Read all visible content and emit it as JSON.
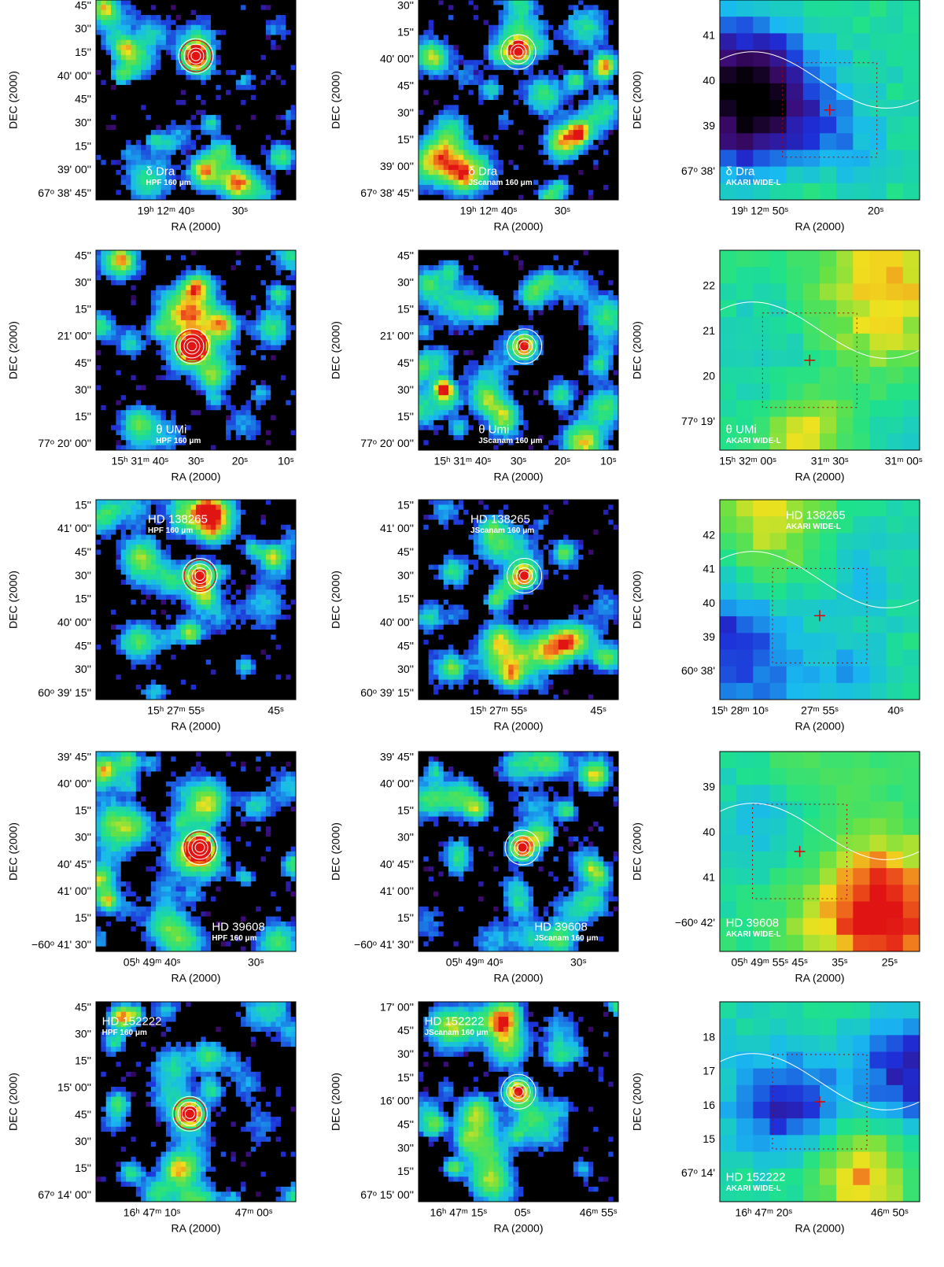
{
  "panels": [
    {
      "name": "δ Dra",
      "instrument": "HPF 160 μm",
      "y_label": "DEC (2000)",
      "x_label": "RA (2000)",
      "yticks": [
        "45''",
        "30''",
        "15''",
        "40' 00''",
        "45''",
        "30''",
        "15''",
        "39' 00''",
        "67ᵒ 38' 45''"
      ],
      "xticks": [
        "19ʰ 12ᵐ 40ˢ",
        "30ˢ"
      ]
    },
    {
      "name": "δ Dra",
      "instrument": "JScanam 160 μm",
      "y_label": "DEC (2000)",
      "x_label": "RA (2000)",
      "yticks": [
        "30''",
        "15''",
        "40' 00''",
        "45''",
        "30''",
        "15''",
        "39' 00''",
        "67ᵒ 38' 45''"
      ],
      "xticks": [
        "19ʰ 12ᵐ 40ˢ",
        "30ˢ"
      ]
    },
    {
      "name": "δ Dra",
      "instrument": "AKARI WIDE-L",
      "y_label": "DEC (2000)",
      "x_label": "RA (2000)",
      "yticks": [
        "41",
        "40",
        "39",
        "67ᵒ 38'"
      ],
      "xticks": [
        "19ʰ 12ᵐ 50ˢ",
        "20ˢ"
      ]
    },
    {
      "name": "θ UMi",
      "instrument": "HPF 160 μm",
      "y_label": "DEC (2000)",
      "x_label": "RA (2000)",
      "yticks": [
        "45''",
        "30''",
        "15''",
        "21' 00''",
        "45''",
        "30''",
        "15''",
        "77ᵒ 20' 00''"
      ],
      "xticks": [
        "15ʰ 31ᵐ 40ˢ",
        "30ˢ",
        "20ˢ",
        "10ˢ"
      ]
    },
    {
      "name": "θ Umi",
      "instrument": "JScanam 160 μm",
      "y_label": "DEC (2000)",
      "x_label": "RA (2000)",
      "yticks": [
        "45''",
        "30''",
        "15''",
        "21' 00''",
        "45''",
        "30''",
        "15''",
        "77ᵒ 20' 00''"
      ],
      "xticks": [
        "15ʰ 31ᵐ 40ˢ",
        "30ˢ",
        "20ˢ",
        "10ˢ"
      ]
    },
    {
      "name": "θ UMi",
      "instrument": "AKARI WIDE-L",
      "y_label": "DEC (2000)",
      "x_label": "RA (2000)",
      "yticks": [
        "22",
        "21",
        "20",
        "77ᵒ 19'"
      ],
      "xticks": [
        "15ʰ 32ᵐ 00ˢ",
        "31ᵐ 30ˢ",
        "31ᵐ 00ˢ"
      ]
    },
    {
      "name": "HD 138265",
      "instrument": "HPF 160 μm",
      "y_label": "DEC (2000)",
      "x_label": "RA (2000)",
      "yticks": [
        "15''",
        "41' 00''",
        "45''",
        "30''",
        "15''",
        "40' 00''",
        "45''",
        "30''",
        "60ᵒ 39' 15''"
      ],
      "xticks": [
        "15ʰ 27ᵐ 55ˢ",
        "45ˢ"
      ]
    },
    {
      "name": "HD 138265",
      "instrument": "JScanam 160 μm",
      "y_label": "DEC (2000)",
      "x_label": "RA (2000)",
      "yticks": [
        "15''",
        "41' 00''",
        "45''",
        "30''",
        "15''",
        "40' 00''",
        "45''",
        "30''",
        "60ᵒ 39' 15''"
      ],
      "xticks": [
        "15ʰ 27ᵐ 55ˢ",
        "45ˢ"
      ]
    },
    {
      "name": "HD 138265",
      "instrument": "AKARI WIDE-L",
      "y_label": "DEC (2000)",
      "x_label": "RA (2000)",
      "yticks": [
        "42",
        "41",
        "40",
        "39",
        "60ᵒ 38'"
      ],
      "xticks": [
        "15ʰ 28ᵐ 10ˢ",
        "27ᵐ 55ˢ",
        "40ˢ"
      ]
    },
    {
      "name": "HD 39608",
      "instrument": "HPF 160 μm",
      "y_label": "DEC (2000)",
      "x_label": "RA (2000)",
      "yticks": [
        "39' 45''",
        "40' 00''",
        "15''",
        "30''",
        "40' 45''",
        "41' 00''",
        "15''",
        "−60ᵒ 41' 30''"
      ],
      "xticks": [
        "05ʰ 49ᵐ 40ˢ",
        "30ˢ"
      ]
    },
    {
      "name": "HD 39608",
      "instrument": "JScanam 160 μm",
      "y_label": "DEC (2000)",
      "x_label": "RA (2000)",
      "yticks": [
        "39' 45''",
        "40' 00''",
        "15''",
        "30''",
        "40' 45''",
        "41' 00''",
        "15''",
        "−60ᵒ 41' 30''"
      ],
      "xticks": [
        "05ʰ 49ᵐ 40ˢ",
        "30ˢ"
      ]
    },
    {
      "name": "HD 39608",
      "instrument": "AKARI WIDE-L",
      "y_label": "DEC (2000)",
      "x_label": "RA (2000)",
      "yticks": [
        "39",
        "40",
        "41",
        "−60ᵒ 42'"
      ],
      "xticks": [
        "05ʰ 49ᵐ 55ˢ",
        "45ˢ",
        "35ˢ",
        "25ˢ"
      ]
    },
    {
      "name": "HD 152222",
      "instrument": "HPF 160 μm",
      "y_label": "DEC (2000)",
      "x_label": "RA (2000)",
      "yticks": [
        "45''",
        "30''",
        "15''",
        "15' 00''",
        "45''",
        "30''",
        "15''",
        "67ᵒ 14' 00''"
      ],
      "xticks": [
        "16ʰ 47ᵐ 10ˢ",
        "47ᵐ 00ˢ"
      ]
    },
    {
      "name": "HD 152222",
      "instrument": "JScanam 160 μm",
      "y_label": "DEC (2000)",
      "x_label": "RA (2000)",
      "yticks": [
        "17' 00''",
        "45''",
        "30''",
        "15''",
        "16' 00''",
        "45''",
        "30''",
        "15''",
        "67ᵒ 15' 00''"
      ],
      "xticks": [
        "16ʰ 47ᵐ 15ˢ",
        "05ˢ",
        "46ᵐ 55ˢ"
      ]
    },
    {
      "name": "HD 152222",
      "instrument": "AKARI WIDE-L",
      "y_label": "DEC (2000)",
      "x_label": "RA (2000)",
      "yticks": [
        "18",
        "17",
        "16",
        "15",
        "67ᵒ 14'"
      ],
      "xticks": [
        "16ʰ 47ᵐ 20ˢ",
        "46ᵐ 50ˢ"
      ]
    }
  ]
}
